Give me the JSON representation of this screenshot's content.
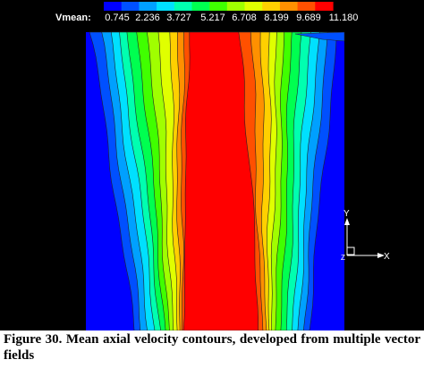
{
  "chart_data": {
    "type": "heatmap",
    "colorbar": {
      "label": "Vmean:",
      "tick_labels": [
        "0.745",
        "2.236",
        "3.727",
        "5.217",
        "6.708",
        "8.199",
        "9.689",
        "11.180"
      ],
      "colors": [
        "#0000ff",
        "#0050ff",
        "#00a0ff",
        "#00e0ff",
        "#00ffb0",
        "#00ff50",
        "#40ff00",
        "#a0ff00",
        "#e0ff00",
        "#ffd000",
        "#ff9000",
        "#ff5000",
        "#ff0000"
      ]
    },
    "axes": {
      "y_label": "Y",
      "x_label": "X",
      "z_label": "Z"
    },
    "contour_field": "Vmean"
  },
  "caption": "Figure 30. Mean axial velocity contours, developed from multiple vector fields"
}
